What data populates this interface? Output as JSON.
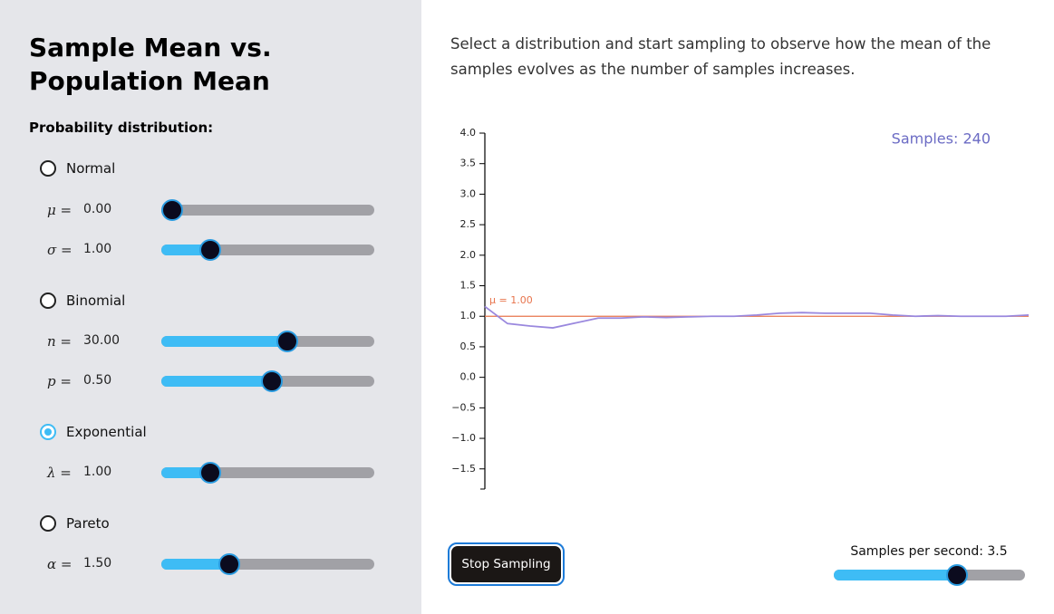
{
  "sidebar": {
    "title": "Sample Mean vs. Population Mean",
    "distribution_label": "Probability distribution:",
    "distributions": [
      {
        "name": "Normal",
        "selected": false,
        "params": [
          {
            "symbol": "μ =",
            "value": "0.00"
          },
          {
            "symbol": "σ =",
            "value": "1.00"
          }
        ]
      },
      {
        "name": "Binomial",
        "selected": false,
        "params": [
          {
            "symbol": "n =",
            "value": "30.00"
          },
          {
            "symbol": "p =",
            "value": "0.50"
          }
        ]
      },
      {
        "name": "Exponential",
        "selected": true,
        "params": [
          {
            "symbol": "λ =",
            "value": "1.00"
          }
        ]
      },
      {
        "name": "Pareto",
        "selected": false,
        "params": [
          {
            "symbol": "α =",
            "value": "1.50"
          }
        ]
      }
    ]
  },
  "intro": "Select a distribution and start sampling to observe how the mean of the samples evolves as the number of samples increases.",
  "chart_data": {
    "type": "line",
    "annotation": "Samples: 240",
    "annotation_color": "#6b6bc4",
    "ylim": [
      -1.83,
      4.0
    ],
    "yticks": [
      {
        "value": -1.5,
        "label": "−1.5"
      },
      {
        "value": -1.0,
        "label": "−1.0"
      },
      {
        "value": -0.5,
        "label": "−0.5"
      },
      {
        "value": 0.0,
        "label": "0.0"
      },
      {
        "value": 0.5,
        "label": "0.5"
      },
      {
        "value": 1.0,
        "label": "1.0"
      },
      {
        "value": 1.5,
        "label": "1.5"
      },
      {
        "value": 2.0,
        "label": "2.0"
      },
      {
        "value": 2.5,
        "label": "2.5"
      },
      {
        "value": 3.0,
        "label": "3.0"
      },
      {
        "value": 3.5,
        "label": "3.5"
      },
      {
        "value": 4.0,
        "label": "4.0"
      }
    ],
    "reference": {
      "value": 1.0,
      "label": "μ = 1.00",
      "color": "#e8744c"
    },
    "series": [
      {
        "color": "#9a88de",
        "values": [
          1.16,
          0.88,
          0.84,
          0.81,
          0.89,
          0.97,
          0.97,
          0.99,
          0.98,
          0.99,
          1.0,
          1.0,
          1.02,
          1.05,
          1.06,
          1.05,
          1.05,
          1.05,
          1.02,
          1.0,
          1.01,
          1.0,
          1.0,
          1.0,
          1.02
        ]
      }
    ]
  },
  "controls": {
    "button": "Stop Sampling",
    "speed_label": "Samples per second: 3.5"
  }
}
